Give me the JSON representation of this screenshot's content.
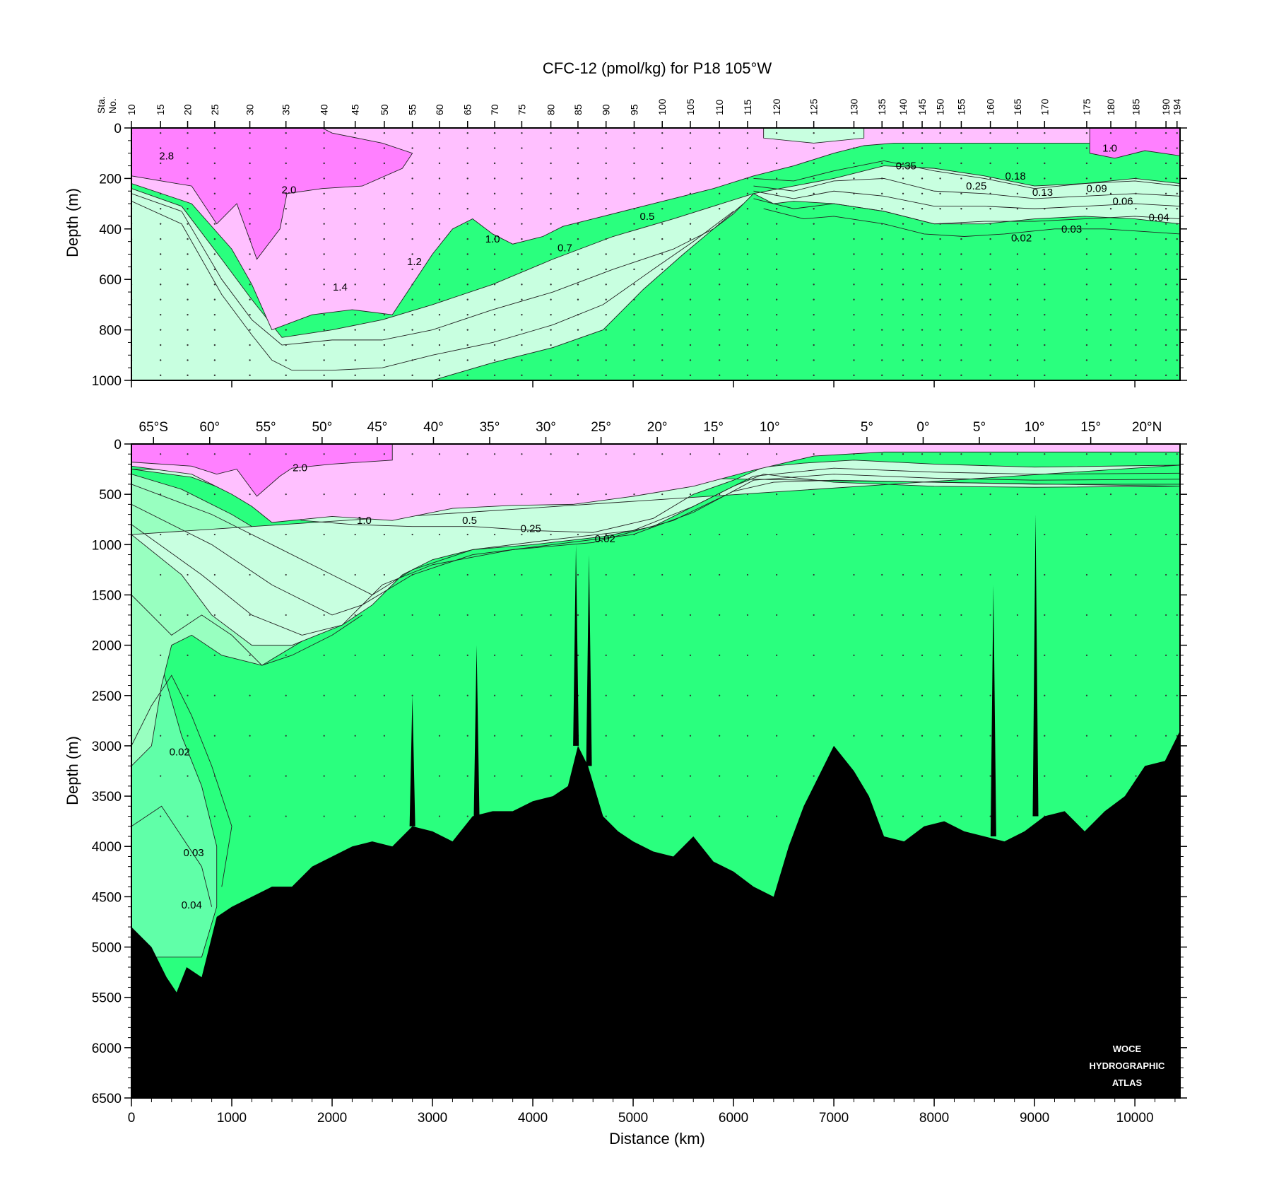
{
  "chart_data": {
    "type": "heatmap",
    "title": "CFC-12 (pmol/kg) for P18 105°W",
    "xlabel": "Distance (km)",
    "xlim": [
      0,
      10450
    ],
    "x_ticks": [
      0,
      1000,
      2000,
      3000,
      4000,
      5000,
      6000,
      7000,
      8000,
      9000,
      10000
    ],
    "colors": {
      "high": "#ff80ff",
      "mid": "#ffc0ff",
      "low": "#c8ffe0",
      "lower": "#98ffc0",
      "lowest": "#60ffa8",
      "background": "#2aff7e",
      "bathymetry": "#000000"
    },
    "station_axis": {
      "label_line1": "Sta.",
      "label_line2": "No.",
      "stations": [
        {
          "label": "10",
          "km": 0
        },
        {
          "label": "15",
          "km": 290
        },
        {
          "label": "20",
          "km": 560
        },
        {
          "label": "25",
          "km": 830
        },
        {
          "label": "30",
          "km": 1180
        },
        {
          "label": "35",
          "km": 1540
        },
        {
          "label": "40",
          "km": 1920
        },
        {
          "label": "45",
          "km": 2230
        },
        {
          "label": "50",
          "km": 2520
        },
        {
          "label": "55",
          "km": 2800
        },
        {
          "label": "60",
          "km": 3070
        },
        {
          "label": "65",
          "km": 3350
        },
        {
          "label": "70",
          "km": 3620
        },
        {
          "label": "75",
          "km": 3890
        },
        {
          "label": "80",
          "km": 4180
        },
        {
          "label": "85",
          "km": 4450
        },
        {
          "label": "90",
          "km": 4730
        },
        {
          "label": "95",
          "km": 5010
        },
        {
          "label": "100",
          "km": 5290
        },
        {
          "label": "105",
          "km": 5570
        },
        {
          "label": "110",
          "km": 5860
        },
        {
          "label": "115",
          "km": 6140
        },
        {
          "label": "120",
          "km": 6430
        },
        {
          "label": "125",
          "km": 6800
        },
        {
          "label": "130",
          "km": 7200
        },
        {
          "label": "135",
          "km": 7480
        },
        {
          "label": "140",
          "km": 7690
        },
        {
          "label": "145",
          "km": 7880
        },
        {
          "label": "150",
          "km": 8060
        },
        {
          "label": "155",
          "km": 8270
        },
        {
          "label": "160",
          "km": 8560
        },
        {
          "label": "165",
          "km": 8830
        },
        {
          "label": "170",
          "km": 9100
        },
        {
          "label": "175",
          "km": 9520
        },
        {
          "label": "180",
          "km": 9760
        },
        {
          "label": "185",
          "km": 10010
        },
        {
          "label": "190",
          "km": 10310
        },
        {
          "label": "194",
          "km": 10420
        }
      ]
    },
    "latitude_axis": [
      {
        "label": "65°S",
        "km": 220
      },
      {
        "label": "60°",
        "km": 780
      },
      {
        "label": "55°",
        "km": 1340
      },
      {
        "label": "50°",
        "km": 1900
      },
      {
        "label": "45°",
        "km": 2450
      },
      {
        "label": "40°",
        "km": 3010
      },
      {
        "label": "35°",
        "km": 3570
      },
      {
        "label": "30°",
        "km": 4130
      },
      {
        "label": "25°",
        "km": 4680
      },
      {
        "label": "20°",
        "km": 5240
      },
      {
        "label": "15°",
        "km": 5800
      },
      {
        "label": "10°",
        "km": 6360
      },
      {
        "label": "5°",
        "km": 7330
      },
      {
        "label": "0°",
        "km": 7890
      },
      {
        "label": "5°",
        "km": 8450
      },
      {
        "label": "10°",
        "km": 9000
      },
      {
        "label": "15°",
        "km": 9560
      },
      {
        "label": "20°N",
        "km": 10120
      }
    ],
    "panels": [
      {
        "name": "upper",
        "ylabel": "Depth (m)",
        "ylim": [
          0,
          1000
        ],
        "y_ticks": [
          0,
          200,
          400,
          600,
          800,
          1000
        ],
        "contour_labels": [
          {
            "text": "2.8",
            "km": 350,
            "depth": 110
          },
          {
            "text": "2.0",
            "km": 1570,
            "depth": 245
          },
          {
            "text": "1.4",
            "km": 2080,
            "depth": 630
          },
          {
            "text": "1.2",
            "km": 2820,
            "depth": 530
          },
          {
            "text": "1.0",
            "km": 3600,
            "depth": 440
          },
          {
            "text": "0.7",
            "km": 4320,
            "depth": 475
          },
          {
            "text": "0.5",
            "km": 5140,
            "depth": 350
          },
          {
            "text": "0.35",
            "km": 7720,
            "depth": 150
          },
          {
            "text": "0.25",
            "km": 8420,
            "depth": 230
          },
          {
            "text": "0.18",
            "km": 8810,
            "depth": 190
          },
          {
            "text": "0.13",
            "km": 9080,
            "depth": 255
          },
          {
            "text": "0.09",
            "km": 9620,
            "depth": 240
          },
          {
            "text": "0.06",
            "km": 9880,
            "depth": 290
          },
          {
            "text": "0.04",
            "km": 10240,
            "depth": 355
          },
          {
            "text": "0.03",
            "km": 9370,
            "depth": 400
          },
          {
            "text": "0.02",
            "km": 8870,
            "depth": 435
          },
          {
            "text": "1.0",
            "km": 9750,
            "depth": 80
          }
        ]
      },
      {
        "name": "lower",
        "ylabel": "Depth (m)",
        "ylim": [
          0,
          6500
        ],
        "y_ticks": [
          0,
          500,
          1000,
          1500,
          2000,
          2500,
          3000,
          3500,
          4000,
          4500,
          5000,
          5500,
          6000,
          6500
        ],
        "contour_labels": [
          {
            "text": "2.0",
            "km": 1680,
            "depth": 235
          },
          {
            "text": "1.0",
            "km": 2320,
            "depth": 760
          },
          {
            "text": "0.5",
            "km": 3370,
            "depth": 760
          },
          {
            "text": "0.25",
            "km": 3980,
            "depth": 840
          },
          {
            "text": "0.02",
            "km": 4720,
            "depth": 940
          },
          {
            "text": "0.02",
            "km": 480,
            "depth": 3060
          },
          {
            "text": "0.03",
            "km": 620,
            "depth": 4060
          },
          {
            "text": "0.04",
            "km": 600,
            "depth": 4580
          }
        ]
      }
    ],
    "bathymetry_depth_m": [
      {
        "km": 0,
        "depth": 4800
      },
      {
        "km": 200,
        "depth": 5000
      },
      {
        "km": 350,
        "depth": 5300
      },
      {
        "km": 450,
        "depth": 5450
      },
      {
        "km": 550,
        "depth": 5200
      },
      {
        "km": 700,
        "depth": 5300
      },
      {
        "km": 850,
        "depth": 4700
      },
      {
        "km": 1000,
        "depth": 4600
      },
      {
        "km": 1200,
        "depth": 4500
      },
      {
        "km": 1400,
        "depth": 4400
      },
      {
        "km": 1600,
        "depth": 4400
      },
      {
        "km": 1800,
        "depth": 4200
      },
      {
        "km": 2000,
        "depth": 4100
      },
      {
        "km": 2200,
        "depth": 4000
      },
      {
        "km": 2400,
        "depth": 3950
      },
      {
        "km": 2600,
        "depth": 4000
      },
      {
        "km": 2800,
        "depth": 3800
      },
      {
        "km": 3000,
        "depth": 3850
      },
      {
        "km": 3200,
        "depth": 3950
      },
      {
        "km": 3400,
        "depth": 3700
      },
      {
        "km": 3600,
        "depth": 3650
      },
      {
        "km": 3800,
        "depth": 3650
      },
      {
        "km": 4000,
        "depth": 3550
      },
      {
        "km": 4200,
        "depth": 3500
      },
      {
        "km": 4350,
        "depth": 3400
      },
      {
        "km": 4450,
        "depth": 3000
      },
      {
        "km": 4550,
        "depth": 3200
      },
      {
        "km": 4700,
        "depth": 3700
      },
      {
        "km": 4850,
        "depth": 3850
      },
      {
        "km": 5000,
        "depth": 3950
      },
      {
        "km": 5200,
        "depth": 4050
      },
      {
        "km": 5400,
        "depth": 4100
      },
      {
        "km": 5600,
        "depth": 3900
      },
      {
        "km": 5800,
        "depth": 4150
      },
      {
        "km": 6000,
        "depth": 4250
      },
      {
        "km": 6200,
        "depth": 4400
      },
      {
        "km": 6400,
        "depth": 4500
      },
      {
        "km": 6550,
        "depth": 4000
      },
      {
        "km": 6700,
        "depth": 3600
      },
      {
        "km": 6850,
        "depth": 3300
      },
      {
        "km": 7000,
        "depth": 3000
      },
      {
        "km": 7200,
        "depth": 3250
      },
      {
        "km": 7350,
        "depth": 3500
      },
      {
        "km": 7500,
        "depth": 3900
      },
      {
        "km": 7700,
        "depth": 3950
      },
      {
        "km": 7900,
        "depth": 3800
      },
      {
        "km": 8100,
        "depth": 3750
      },
      {
        "km": 8300,
        "depth": 3850
      },
      {
        "km": 8500,
        "depth": 3900
      },
      {
        "km": 8700,
        "depth": 3950
      },
      {
        "km": 8900,
        "depth": 3850
      },
      {
        "km": 9100,
        "depth": 3700
      },
      {
        "km": 9300,
        "depth": 3650
      },
      {
        "km": 9500,
        "depth": 3850
      },
      {
        "km": 9700,
        "depth": 3650
      },
      {
        "km": 9900,
        "depth": 3500
      },
      {
        "km": 10100,
        "depth": 3200
      },
      {
        "km": 10300,
        "depth": 3150
      },
      {
        "km": 10450,
        "depth": 2850
      }
    ],
    "watermark": [
      "WOCE",
      "HYDROGRAPHIC",
      "ATLAS"
    ]
  }
}
